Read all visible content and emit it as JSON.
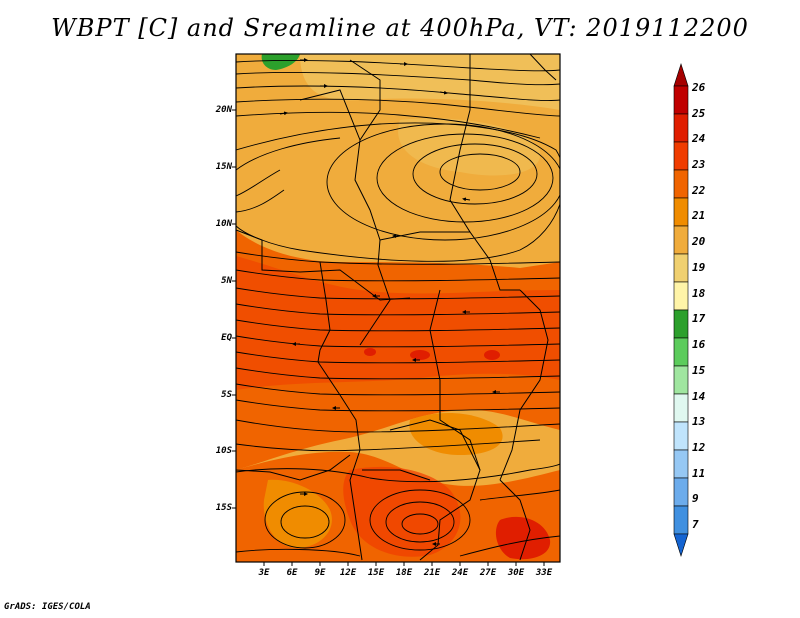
{
  "title": "WBPT [C] and Sreamline at 400hPa, VT: 2019112200",
  "credit": "GrADS: IGES/COLA",
  "map": {
    "lat_labels": [
      "20N",
      "15N",
      "10N",
      "5N",
      "EQ",
      "5S",
      "10S",
      "15S"
    ],
    "lon_labels": [
      "3E",
      "6E",
      "9E",
      "12E",
      "15E",
      "18E",
      "21E",
      "24E",
      "27E",
      "30E",
      "33E"
    ]
  },
  "colorbar": {
    "labels": [
      "26",
      "25",
      "24",
      "23",
      "22",
      "21",
      "20",
      "19",
      "18",
      "17",
      "16",
      "15",
      "14",
      "13",
      "12",
      "11",
      "9",
      "7"
    ],
    "colors": [
      "#a50000",
      "#c00000",
      "#e01e00",
      "#f03c00",
      "#f06400",
      "#f08c00",
      "#f0ac3c",
      "#f0d070",
      "#fff4a8",
      "#2ca02c",
      "#5ccc5c",
      "#a0e6a0",
      "#e0f8f0",
      "#c0e4fc",
      "#96c8f4",
      "#6cacec",
      "#4090e0",
      "#1464d2"
    ]
  }
}
